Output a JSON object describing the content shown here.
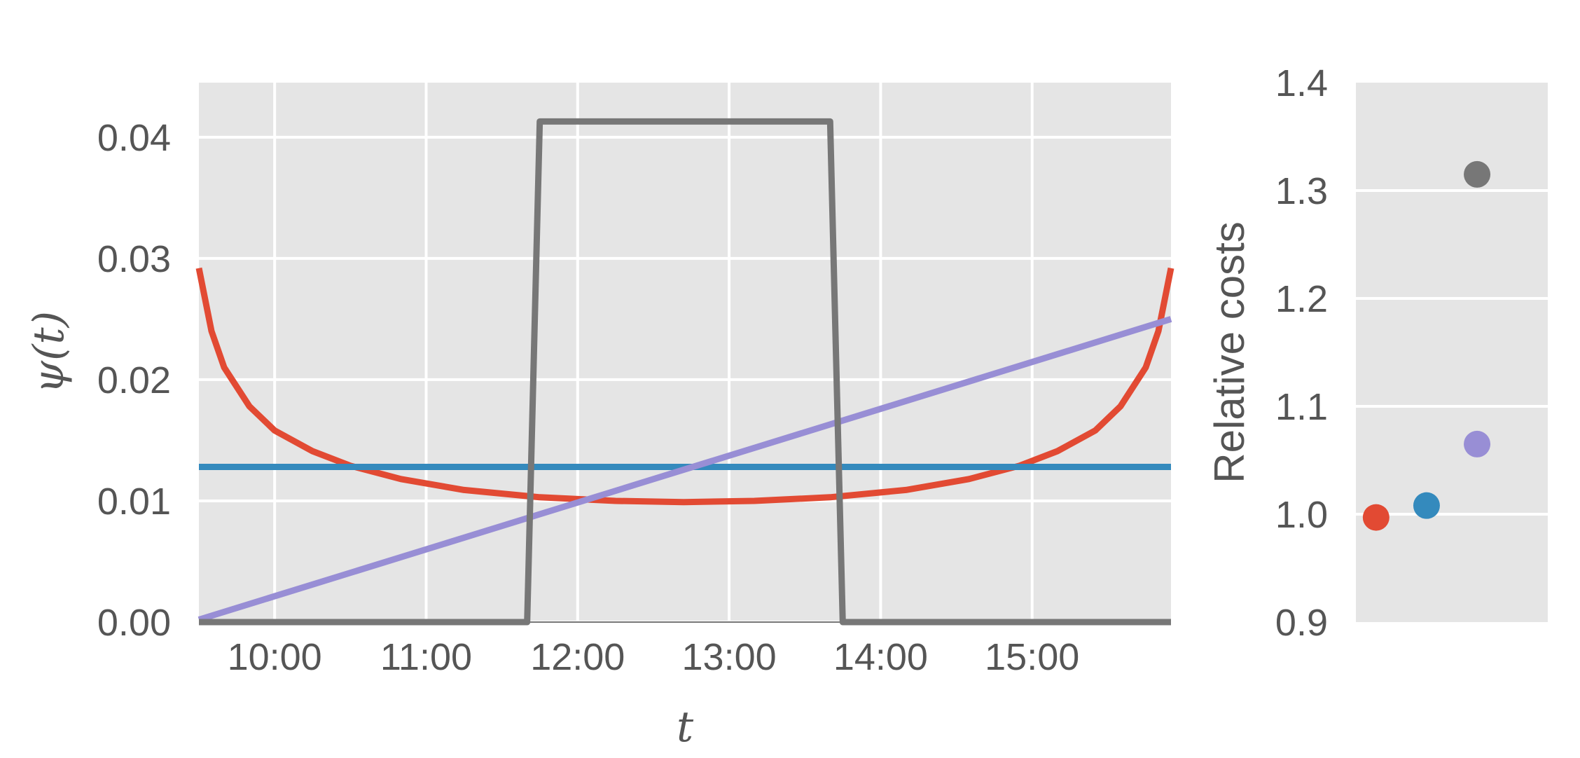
{
  "colors": {
    "background": "#E5E5E5",
    "grid": "#FFFFFF",
    "text": "#555555",
    "baseline": "#777777"
  },
  "chart_data": [
    {
      "type": "line",
      "xlabel": "t",
      "ylabel": "ψ(t)",
      "xlim": [
        "09:30",
        "15:55"
      ],
      "ylim": [
        0,
        0.0445
      ],
      "x_ticks": [
        "10:00",
        "11:00",
        "12:00",
        "13:00",
        "14:00",
        "15:00"
      ],
      "y_ticks": [
        "0.00",
        "0.01",
        "0.02",
        "0.03",
        "0.04"
      ],
      "grid": true,
      "series": [
        {
          "color": "#E24A33",
          "x": [
            "09:30",
            "09:35",
            "09:40",
            "09:50",
            "10:00",
            "10:15",
            "10:30",
            "10:50",
            "11:15",
            "11:45",
            "12:15",
            "12:42",
            "13:10",
            "13:40",
            "14:10",
            "14:35",
            "14:55",
            "15:10",
            "15:25",
            "15:35",
            "15:45",
            "15:50",
            "15:55"
          ],
          "y": [
            0.0292,
            0.024,
            0.021,
            0.0178,
            0.0158,
            0.0141,
            0.0129,
            0.0118,
            0.0109,
            0.0103,
            0.01,
            0.0099,
            0.01,
            0.0103,
            0.0109,
            0.0118,
            0.0129,
            0.0141,
            0.0158,
            0.0178,
            0.021,
            0.024,
            0.0292
          ]
        },
        {
          "color": "#348ABD",
          "x": [
            "09:30",
            "15:55"
          ],
          "y": [
            0.0128,
            0.0128
          ]
        },
        {
          "color": "#988ED5",
          "x": [
            "09:30",
            "15:55"
          ],
          "y": [
            0.0002,
            0.025
          ]
        },
        {
          "color": "#777777",
          "x": [
            "09:30",
            "11:40",
            "11:45",
            "13:40",
            "13:45",
            "15:55"
          ],
          "y": [
            0.0,
            0.0,
            0.0413,
            0.0413,
            0.0,
            0.0
          ]
        }
      ]
    },
    {
      "type": "scatter",
      "ylabel": "Relative costs",
      "ylim": [
        0.9,
        1.4
      ],
      "y_ticks": [
        "0.9",
        "1.0",
        "1.1",
        "1.2",
        "1.3",
        "1.4"
      ],
      "grid": true,
      "points": [
        {
          "x": 0,
          "y": 0.997,
          "color": "#E24A33"
        },
        {
          "x": 1,
          "y": 1.008,
          "color": "#348ABD"
        },
        {
          "x": 2,
          "y": 1.065,
          "color": "#988ED5"
        },
        {
          "x": 2,
          "y": 1.315,
          "color": "#777777"
        }
      ],
      "xlim": [
        -0.4,
        3.4
      ]
    }
  ]
}
